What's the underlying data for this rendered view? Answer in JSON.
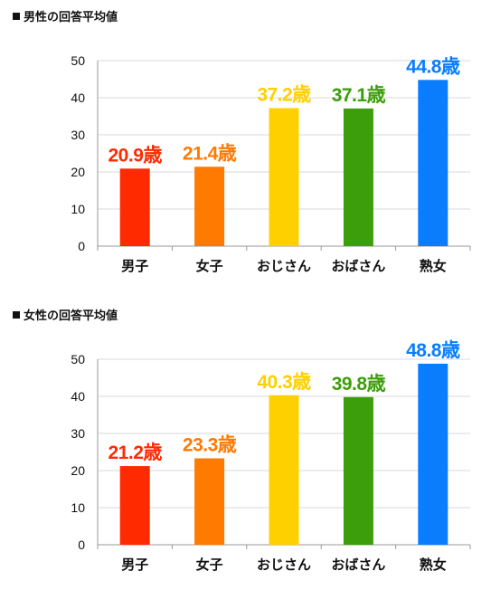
{
  "chart_data": [
    {
      "type": "bar",
      "title": "男性の回答平均値",
      "categories": [
        "男子",
        "女子",
        "おじさん",
        "おばさん",
        "熟女"
      ],
      "values": [
        20.9,
        21.4,
        37.2,
        37.1,
        44.8
      ],
      "data_labels": [
        "20.9歳",
        "21.4歳",
        "37.2歳",
        "37.1歳",
        "44.8歳"
      ],
      "colors": [
        "#ff2a00",
        "#ff7a00",
        "#ffd000",
        "#3c9e0b",
        "#0a7dff"
      ],
      "yticks": [
        "0",
        "10",
        "20",
        "30",
        "40",
        "50"
      ],
      "ylim": [
        0,
        50
      ],
      "xlabel": "",
      "ylabel": "",
      "grid": true
    },
    {
      "type": "bar",
      "title": "女性の回答平均値",
      "categories": [
        "男子",
        "女子",
        "おじさん",
        "おばさん",
        "熟女"
      ],
      "values": [
        21.2,
        23.3,
        40.3,
        39.8,
        48.8
      ],
      "data_labels": [
        "21.2歳",
        "23.3歳",
        "40.3歳",
        "39.8歳",
        "48.8歳"
      ],
      "colors": [
        "#ff2a00",
        "#ff7a00",
        "#ffd000",
        "#3c9e0b",
        "#0a7dff"
      ],
      "yticks": [
        "0",
        "10",
        "20",
        "30",
        "40",
        "50"
      ],
      "ylim": [
        0,
        50
      ],
      "xlabel": "",
      "ylabel": "",
      "grid": true
    }
  ]
}
